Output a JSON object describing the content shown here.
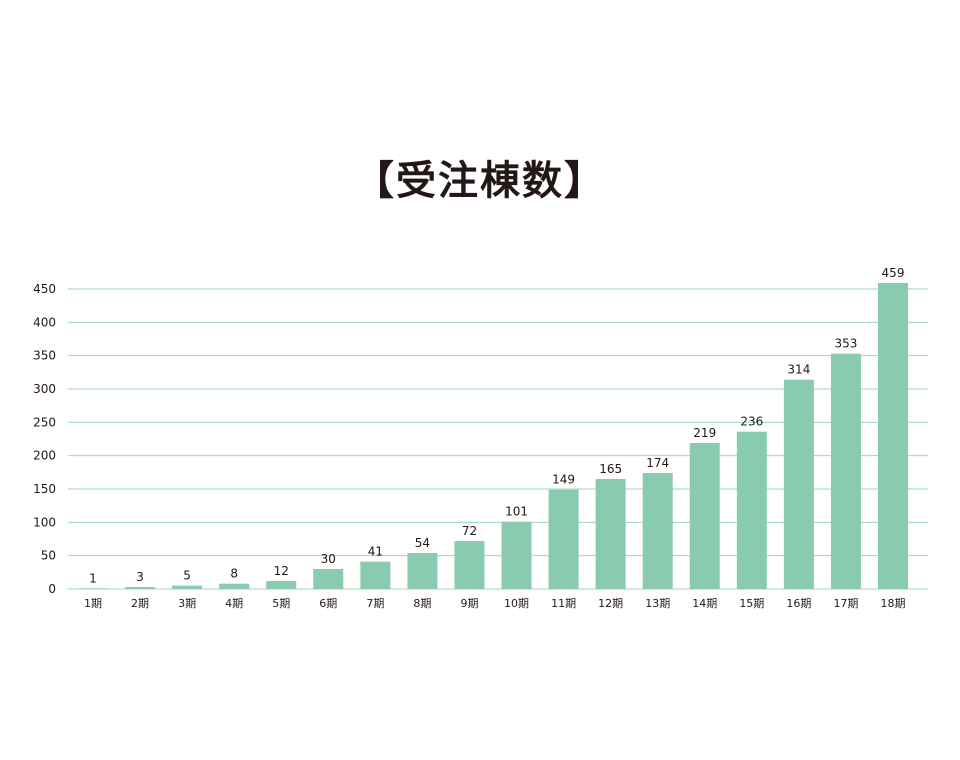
{
  "chart_data": {
    "type": "bar",
    "title": "【受注棟数】",
    "xlabel": "",
    "ylabel": "",
    "categories": [
      "1期",
      "2期",
      "3期",
      "4期",
      "5期",
      "6期",
      "7期",
      "8期",
      "9期",
      "10期",
      "11期",
      "12期",
      "13期",
      "14期",
      "15期",
      "16期",
      "17期",
      "18期"
    ],
    "values": [
      1,
      3,
      5,
      8,
      12,
      30,
      41,
      54,
      72,
      101,
      149,
      165,
      174,
      219,
      236,
      314,
      353,
      459
    ],
    "yticks": [
      0,
      50,
      100,
      150,
      200,
      250,
      300,
      350,
      400,
      450
    ],
    "ylim": [
      0,
      450
    ],
    "grid": true,
    "legend": "none",
    "colors": {
      "bar": "#89cbae",
      "grid": "#9fd4bd",
      "text": "#231815"
    }
  }
}
